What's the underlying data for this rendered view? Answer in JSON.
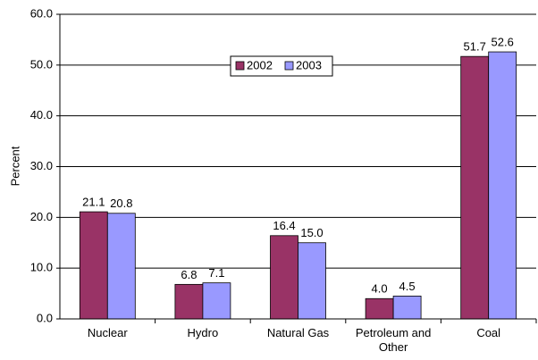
{
  "chart_data": {
    "type": "bar",
    "y_label": "Percent",
    "categories": [
      "Nuclear",
      "Hydro",
      "Natural Gas",
      "Petroleum and Other",
      "Coal"
    ],
    "series": [
      {
        "name": "2002",
        "color": "#993366",
        "values": [
          21.1,
          6.8,
          16.4,
          4,
          51.7
        ],
        "value_labels": [
          "21.1",
          "6.8",
          "16.4",
          "4.0",
          "51.7"
        ]
      },
      {
        "name": "2003",
        "color": "#9999ff",
        "values": [
          20.8,
          7.1,
          15,
          4.5,
          52.6
        ],
        "value_labels": [
          "20.8",
          "7.1",
          "15.0",
          "4.5",
          "52.6"
        ]
      }
    ],
    "ylim": [
      0,
      60
    ],
    "yticks": [
      {
        "value": 0,
        "label": "0.0"
      },
      {
        "value": 10,
        "label": "10.0"
      },
      {
        "value": 20,
        "label": "20.0"
      },
      {
        "value": 30,
        "label": "30.0"
      },
      {
        "value": 40,
        "label": "40.0"
      },
      {
        "value": 50,
        "label": "50.0"
      },
      {
        "value": 60,
        "label": "60.0"
      }
    ],
    "grid": true,
    "legend": "top"
  }
}
